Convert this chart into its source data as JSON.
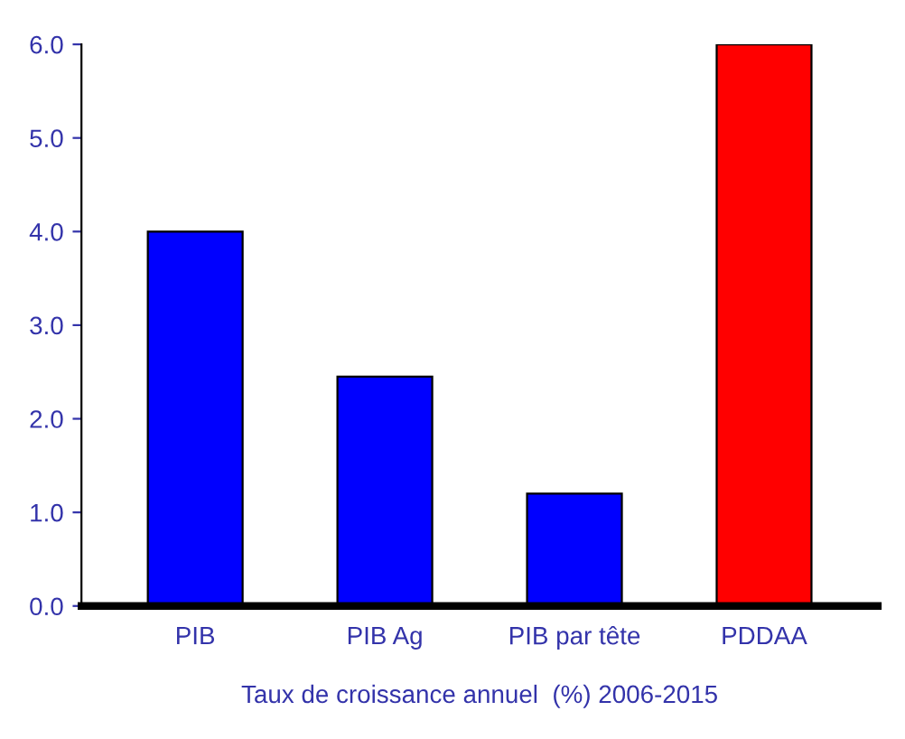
{
  "chart_data": {
    "type": "bar",
    "xlabel": "Taux de croissance annuel  (%) 2006-2015",
    "categories": [
      "PIB",
      "PIB Ag",
      "PIB par tête",
      "PDDAA"
    ],
    "values": [
      4.0,
      2.45,
      1.2,
      6.0
    ],
    "colors": [
      "#0000ff",
      "#0000ff",
      "#0000ff",
      "#ff0000"
    ],
    "ylim": [
      0,
      6
    ],
    "yticks": [
      {
        "value": 0,
        "label": "0.0"
      },
      {
        "value": 1,
        "label": "1.0"
      },
      {
        "value": 2,
        "label": "2.0"
      },
      {
        "value": 3,
        "label": "3.0"
      },
      {
        "value": 4,
        "label": "4.0"
      },
      {
        "value": 5,
        "label": "5.0"
      },
      {
        "value": 6,
        "label": "6.0"
      }
    ],
    "grid": false,
    "legend": false
  }
}
